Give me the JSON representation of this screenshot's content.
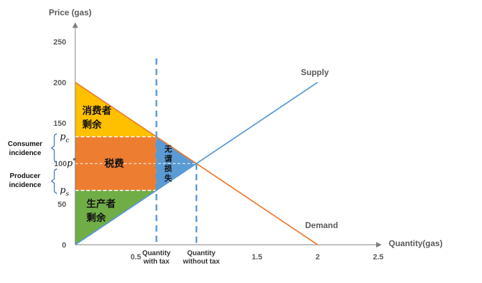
{
  "chart_data": {
    "type": "line",
    "title": "",
    "xlabel": "Quantity(gas)",
    "ylabel": "Price (gas)",
    "xlim": [
      0,
      2.5
    ],
    "ylim": [
      0,
      250
    ],
    "x_ticks": [
      "0.5",
      "1.5",
      "2",
      "2.5"
    ],
    "y_ticks": [
      "0",
      "50",
      "100",
      "150",
      "200",
      "250"
    ],
    "series": [
      {
        "name": "Supply",
        "x": [
          0,
          2
        ],
        "y": [
          0,
          200
        ],
        "color": "#5b9bd5"
      },
      {
        "name": "Demand",
        "x": [
          0,
          2
        ],
        "y": [
          200,
          0
        ],
        "color": "#ed7d31"
      }
    ],
    "markers": {
      "quantity_with_tax": {
        "x": 0.67,
        "label": "Quantity\nwith tax"
      },
      "quantity_without_tax": {
        "x": 1,
        "label": "Quantity\nwithout tax"
      },
      "p_consumer": {
        "y": 133,
        "symbol": "p",
        "subscript": "c"
      },
      "p_equilibrium": {
        "y": 100,
        "symbol": "p",
        "superscript": "*"
      },
      "p_producer": {
        "y": 67,
        "symbol": "p",
        "subscript": "s"
      }
    },
    "regions": [
      {
        "name": "消费者\n剩余",
        "color": "#ffc000"
      },
      {
        "name": "税费",
        "color": "#ed7d31"
      },
      {
        "name": "无\n谓\n损\n失",
        "color": "#5b9bd5"
      },
      {
        "name": "生产者\n剩余",
        "color": "#70ad47"
      }
    ],
    "incidence_labels": {
      "consumer": "Consumer\nincidence",
      "producer": "Producer\nincidence"
    }
  }
}
